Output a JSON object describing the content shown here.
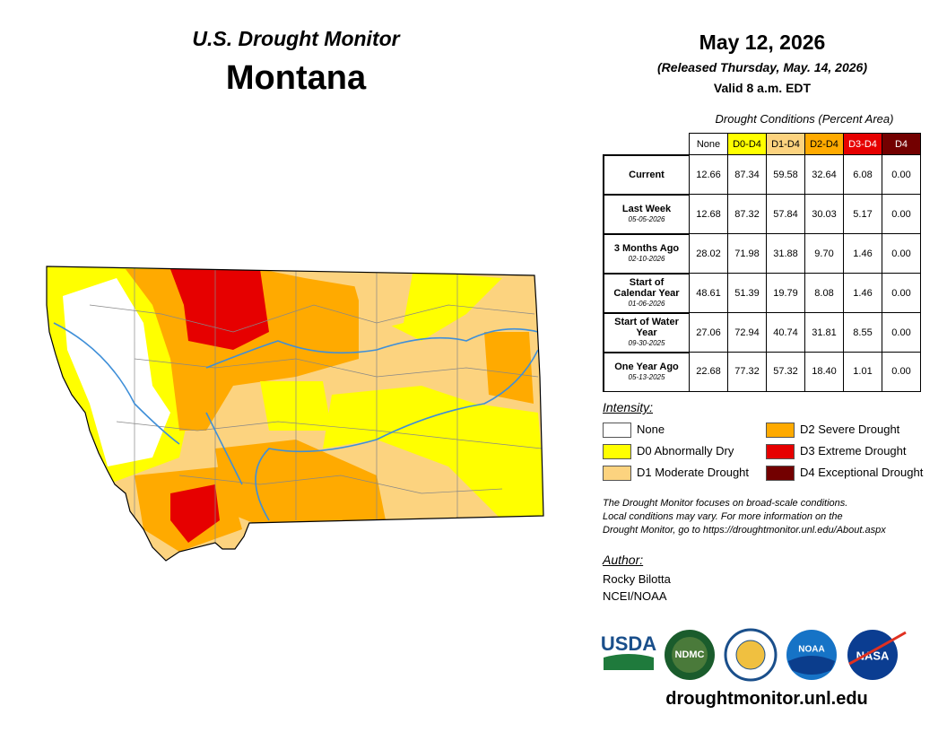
{
  "header": {
    "series": "U.S. Drought Monitor",
    "state": "Montana",
    "date": "May 12, 2026",
    "released": "(Released Thursday, May. 14, 2026)",
    "valid": "Valid 8 a.m. EDT"
  },
  "table": {
    "caption": "Drought Conditions (Percent Area)",
    "columns": [
      {
        "label": "None",
        "color": "#ffffff",
        "text_color": "#000000"
      },
      {
        "label": "D0-D4",
        "color": "#ffff00",
        "text_color": "#000000"
      },
      {
        "label": "D1-D4",
        "color": "#fcd37f",
        "text_color": "#000000"
      },
      {
        "label": "D2-D4",
        "color": "#ffaa00",
        "text_color": "#000000"
      },
      {
        "label": "D3-D4",
        "color": "#e60000",
        "text_color": "#ffffff"
      },
      {
        "label": "D4",
        "color": "#730000",
        "text_color": "#ffffff"
      }
    ],
    "rows": [
      {
        "label": "Current",
        "values": [
          "12.66",
          "87.34",
          "59.58",
          "32.64",
          "6.08",
          "0.00"
        ]
      },
      {
        "label": "Last Week",
        "date": "05-05-2026",
        "values": [
          "12.68",
          "87.32",
          "57.84",
          "30.03",
          "5.17",
          "0.00"
        ]
      },
      {
        "label": "3 Months Ago",
        "date": "02-10-2026",
        "values": [
          "28.02",
          "71.98",
          "31.88",
          "9.70",
          "1.46",
          "0.00"
        ]
      },
      {
        "label": "Start of Calendar Year",
        "date": "01-06-2026",
        "values": [
          "48.61",
          "51.39",
          "19.79",
          "8.08",
          "1.46",
          "0.00"
        ]
      },
      {
        "label": "Start of Water Year",
        "date": "09-30-2025",
        "values": [
          "27.06",
          "72.94",
          "40.74",
          "31.81",
          "8.55",
          "0.00"
        ]
      },
      {
        "label": "One Year Ago",
        "date": "05-13-2025",
        "values": [
          "22.68",
          "77.32",
          "57.32",
          "18.40",
          "1.01",
          "0.00"
        ]
      }
    ]
  },
  "intensity": {
    "title": "Intensity:",
    "items": [
      {
        "label": "None",
        "color": "#ffffff"
      },
      {
        "label": "D0 Abnormally Dry",
        "color": "#ffff00"
      },
      {
        "label": "D1 Moderate Drought",
        "color": "#fcd37f"
      },
      {
        "label": "D2 Severe Drought",
        "color": "#ffaa00"
      },
      {
        "label": "D3 Extreme Drought",
        "color": "#e60000"
      },
      {
        "label": "D4 Exceptional Drought",
        "color": "#730000"
      }
    ]
  },
  "note": [
    "The Drought Monitor focuses on broad-scale conditions.",
    "Local conditions may vary. For more information on the",
    "Drought Monitor, go to https://droughtmonitor.unl.edu/About.aspx"
  ],
  "author": {
    "title": "Author:",
    "name": "Rocky Bilotta",
    "org": "NCEI/NOAA"
  },
  "logos": [
    "USDA",
    "NDMC",
    "NOAA",
    "NASA"
  ],
  "url": "droughtmonitor.unl.edu"
}
